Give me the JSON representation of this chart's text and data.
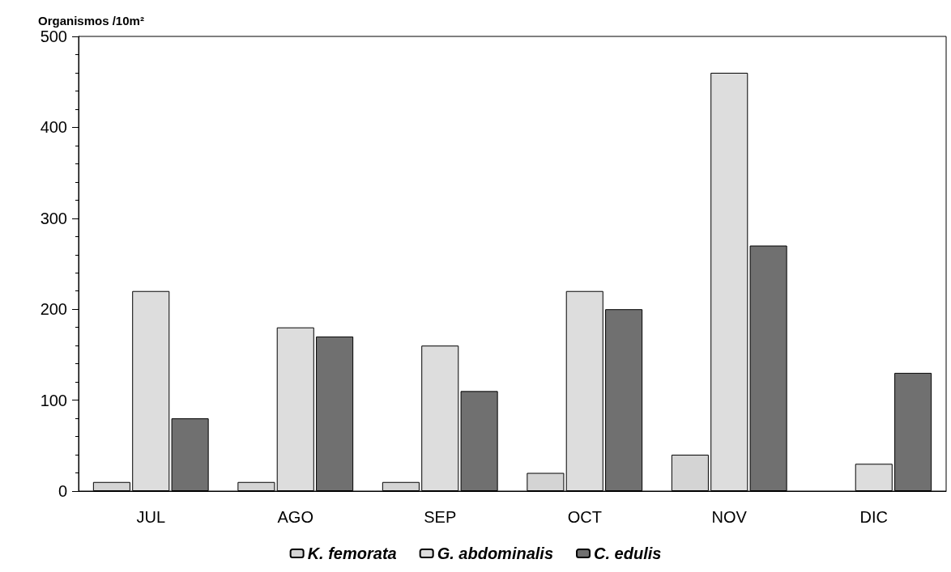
{
  "chart_data": {
    "type": "bar",
    "ylabel": "Organismos /10m²",
    "categories": [
      "JUL",
      "AGO",
      "SEP",
      "OCT",
      "NOV",
      "DIC"
    ],
    "series": [
      {
        "name": "K. femorata",
        "color": "#d4d4d4",
        "values": [
          10,
          10,
          10,
          20,
          40,
          null
        ]
      },
      {
        "name": "G. abdominalis",
        "color": "#dddddd",
        "values": [
          220,
          180,
          160,
          220,
          460,
          30
        ]
      },
      {
        "name": "C. edulis",
        "color": "#707070",
        "values": [
          80,
          170,
          110,
          200,
          270,
          130
        ]
      }
    ],
    "ylim": [
      0,
      500
    ],
    "yticks": [
      0,
      100,
      200,
      300,
      400,
      500
    ],
    "grid": false,
    "legend": "bottom"
  }
}
